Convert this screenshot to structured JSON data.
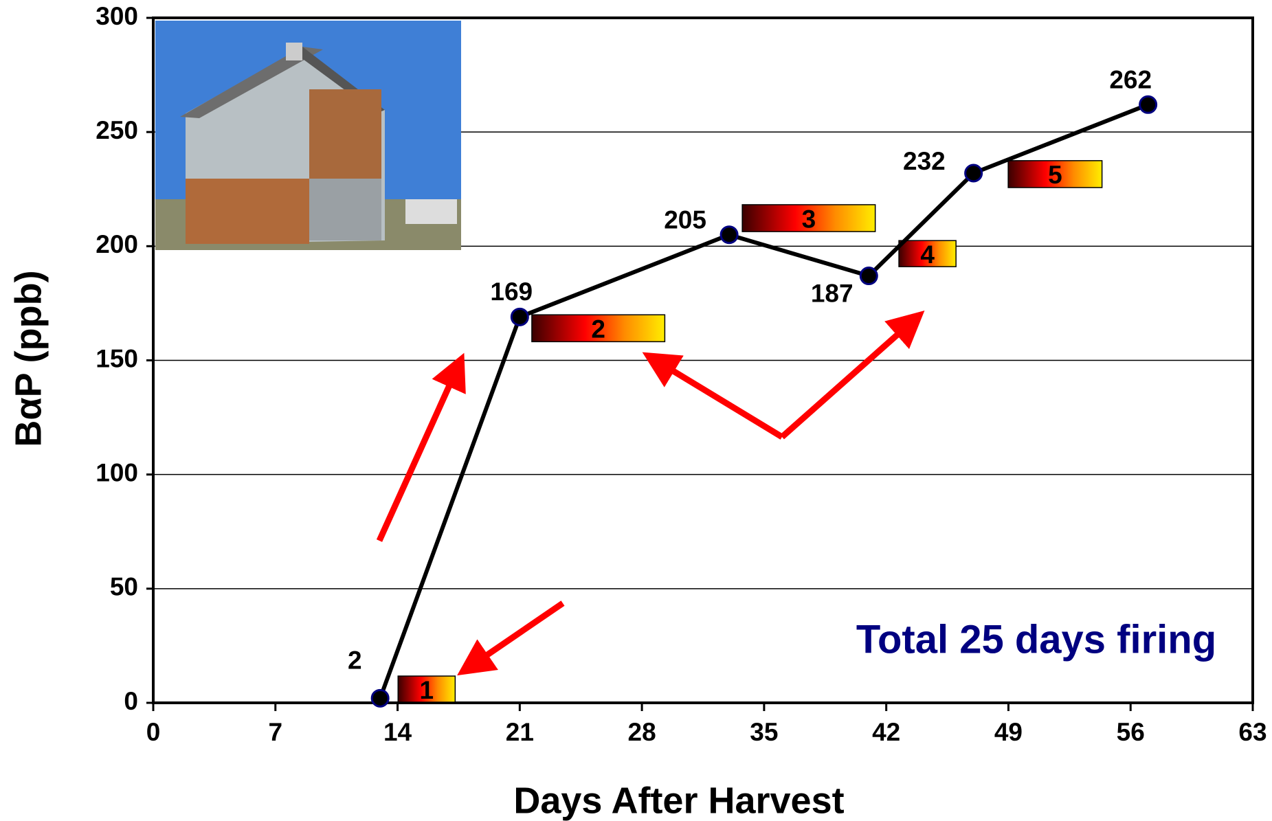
{
  "chart_data": {
    "type": "line",
    "x_label": "Days After Harvest",
    "y_label": "BαP (ppb)",
    "annotation": "Total 25 days firing",
    "firing_labels": [
      "1",
      "2",
      "3",
      "4",
      "5"
    ],
    "x": [
      13,
      21,
      33,
      41,
      47,
      57
    ],
    "series": [
      {
        "name": "BaP",
        "color": "#000000",
        "marker_color": "#000080",
        "values": [
          2,
          169,
          205,
          187,
          232,
          262
        ]
      }
    ],
    "xlim": [
      0,
      63
    ],
    "xticks": [
      0,
      7,
      14,
      21,
      28,
      35,
      42,
      49,
      56,
      63
    ],
    "ylim": [
      0,
      300
    ],
    "yticks": [
      0,
      50,
      100,
      150,
      200,
      250,
      300
    ],
    "grid": true
  }
}
